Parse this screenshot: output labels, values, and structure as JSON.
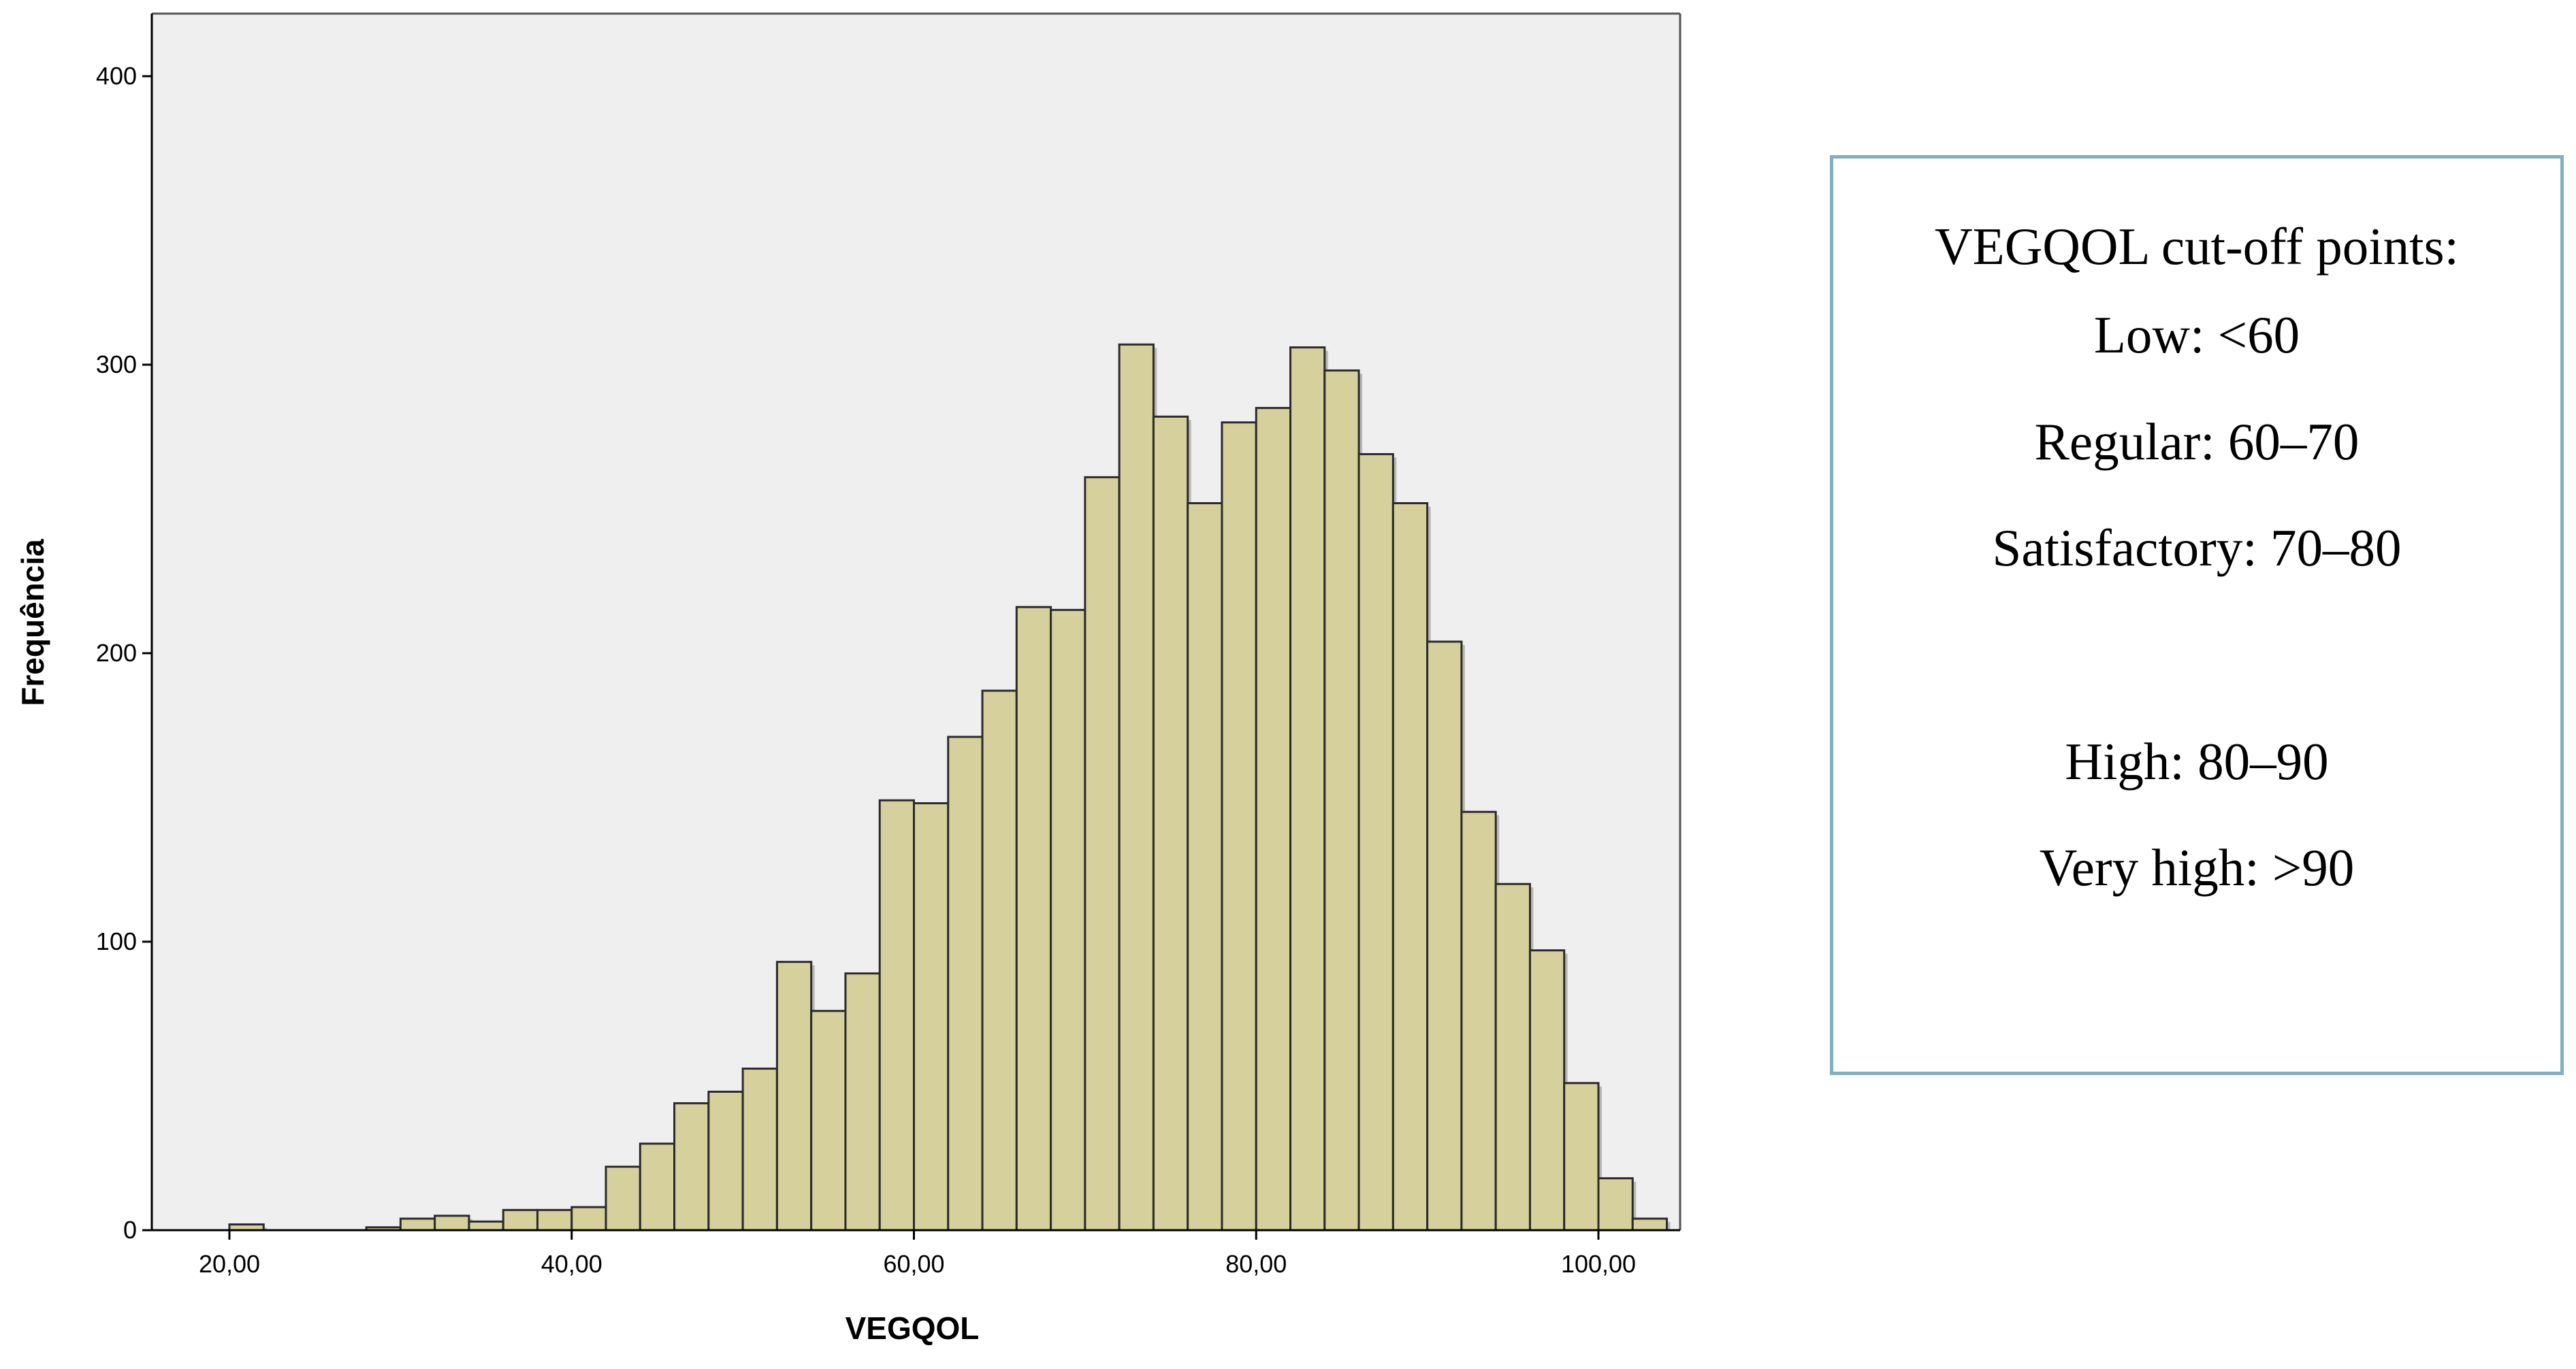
{
  "chart_data": {
    "type": "bar",
    "xlabel": "VEGQOL",
    "ylabel": "Frequência",
    "xlim": [
      15,
      105
    ],
    "ylim": [
      0,
      420
    ],
    "bin_width": 2,
    "x_ticks": [
      20,
      40,
      60,
      80,
      100
    ],
    "x_tick_labels": [
      "20,00",
      "40,00",
      "60,00",
      "80,00",
      "100,00"
    ],
    "y_ticks": [
      0,
      100,
      200,
      300,
      400
    ],
    "y_tick_labels": [
      "0",
      "100",
      "200",
      "300",
      "400"
    ],
    "bins": [
      {
        "x": 21,
        "count": 2
      },
      {
        "x": 29,
        "count": 1
      },
      {
        "x": 31,
        "count": 4
      },
      {
        "x": 33,
        "count": 5
      },
      {
        "x": 35,
        "count": 3
      },
      {
        "x": 37,
        "count": 7
      },
      {
        "x": 39,
        "count": 7
      },
      {
        "x": 41,
        "count": 8
      },
      {
        "x": 43,
        "count": 22
      },
      {
        "x": 45,
        "count": 30
      },
      {
        "x": 47,
        "count": 44
      },
      {
        "x": 49,
        "count": 48
      },
      {
        "x": 51,
        "count": 56
      },
      {
        "x": 53,
        "count": 93
      },
      {
        "x": 55,
        "count": 76
      },
      {
        "x": 57,
        "count": 89
      },
      {
        "x": 59,
        "count": 149
      },
      {
        "x": 61,
        "count": 148
      },
      {
        "x": 63,
        "count": 171
      },
      {
        "x": 65,
        "count": 187
      },
      {
        "x": 67,
        "count": 216
      },
      {
        "x": 69,
        "count": 215
      },
      {
        "x": 71,
        "count": 261
      },
      {
        "x": 73,
        "count": 307
      },
      {
        "x": 75,
        "count": 282
      },
      {
        "x": 77,
        "count": 252
      },
      {
        "x": 79,
        "count": 280
      },
      {
        "x": 81,
        "count": 285
      },
      {
        "x": 83,
        "count": 306
      },
      {
        "x": 85,
        "count": 298
      },
      {
        "x": 87,
        "count": 269
      },
      {
        "x": 89,
        "count": 252
      },
      {
        "x": 91,
        "count": 204
      },
      {
        "x": 93,
        "count": 145
      },
      {
        "x": 95,
        "count": 120
      },
      {
        "x": 97,
        "count": 97
      },
      {
        "x": 99,
        "count": 51
      },
      {
        "x": 101,
        "count": 18
      },
      {
        "x": 103,
        "count": 4
      }
    ],
    "grid": false,
    "colors": {
      "bar_fill": "#d6d09c",
      "bar_edge": "#2b2b2b",
      "plot_background": "#efefef"
    }
  },
  "cutoff_box": {
    "title": "VEGQOL cut-off points:",
    "low": "Low: <60",
    "regular": "Regular: 60–70",
    "satisfactory": "Satisfactory: 70–80",
    "high": "High: 80–90",
    "very_high": "Very high: >90",
    "border_color": "#7fb0c0"
  }
}
